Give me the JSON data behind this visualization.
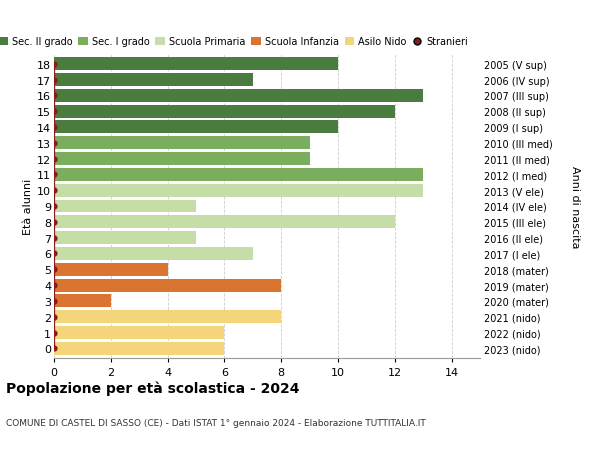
{
  "ages": [
    18,
    17,
    16,
    15,
    14,
    13,
    12,
    11,
    10,
    9,
    8,
    7,
    6,
    5,
    4,
    3,
    2,
    1,
    0
  ],
  "values": [
    10,
    7,
    13,
    12,
    10,
    9,
    9,
    13,
    13,
    5,
    12,
    5,
    7,
    4,
    8,
    2,
    8,
    6,
    6
  ],
  "colors": [
    "#4a7c3f",
    "#4a7c3f",
    "#4a7c3f",
    "#4a7c3f",
    "#4a7c3f",
    "#7aad5e",
    "#7aad5e",
    "#7aad5e",
    "#c5dea8",
    "#c5dea8",
    "#c5dea8",
    "#c5dea8",
    "#c5dea8",
    "#d97530",
    "#d97530",
    "#d97530",
    "#f5d57a",
    "#f5d57a",
    "#f5d57a"
  ],
  "right_labels": [
    "2005 (V sup)",
    "2006 (IV sup)",
    "2007 (III sup)",
    "2008 (II sup)",
    "2009 (I sup)",
    "2010 (III med)",
    "2011 (II med)",
    "2012 (I med)",
    "2013 (V ele)",
    "2014 (IV ele)",
    "2015 (III ele)",
    "2016 (II ele)",
    "2017 (I ele)",
    "2018 (mater)",
    "2019 (mater)",
    "2020 (mater)",
    "2021 (nido)",
    "2022 (nido)",
    "2023 (nido)"
  ],
  "legend_labels": [
    "Sec. II grado",
    "Sec. I grado",
    "Scuola Primaria",
    "Scuola Infanzia",
    "Asilo Nido",
    "Stranieri"
  ],
  "legend_colors": [
    "#4a7c3f",
    "#7aad5e",
    "#c5dea8",
    "#d97530",
    "#f5d57a",
    "#8b1a1a"
  ],
  "ylabel": "Età alunni",
  "right_ylabel": "Anni di nascita",
  "title": "Popolazione per età scolastica - 2024",
  "subtitle": "COMUNE DI CASTEL DI SASSO (CE) - Dati ISTAT 1° gennaio 2024 - Elaborazione TUTTITALIA.IT",
  "bg_color": "#ffffff",
  "grid_color": "#cccccc",
  "bar_height": 0.82,
  "xlim": [
    0,
    15
  ],
  "xticks": [
    0,
    2,
    4,
    6,
    8,
    10,
    12,
    14
  ]
}
